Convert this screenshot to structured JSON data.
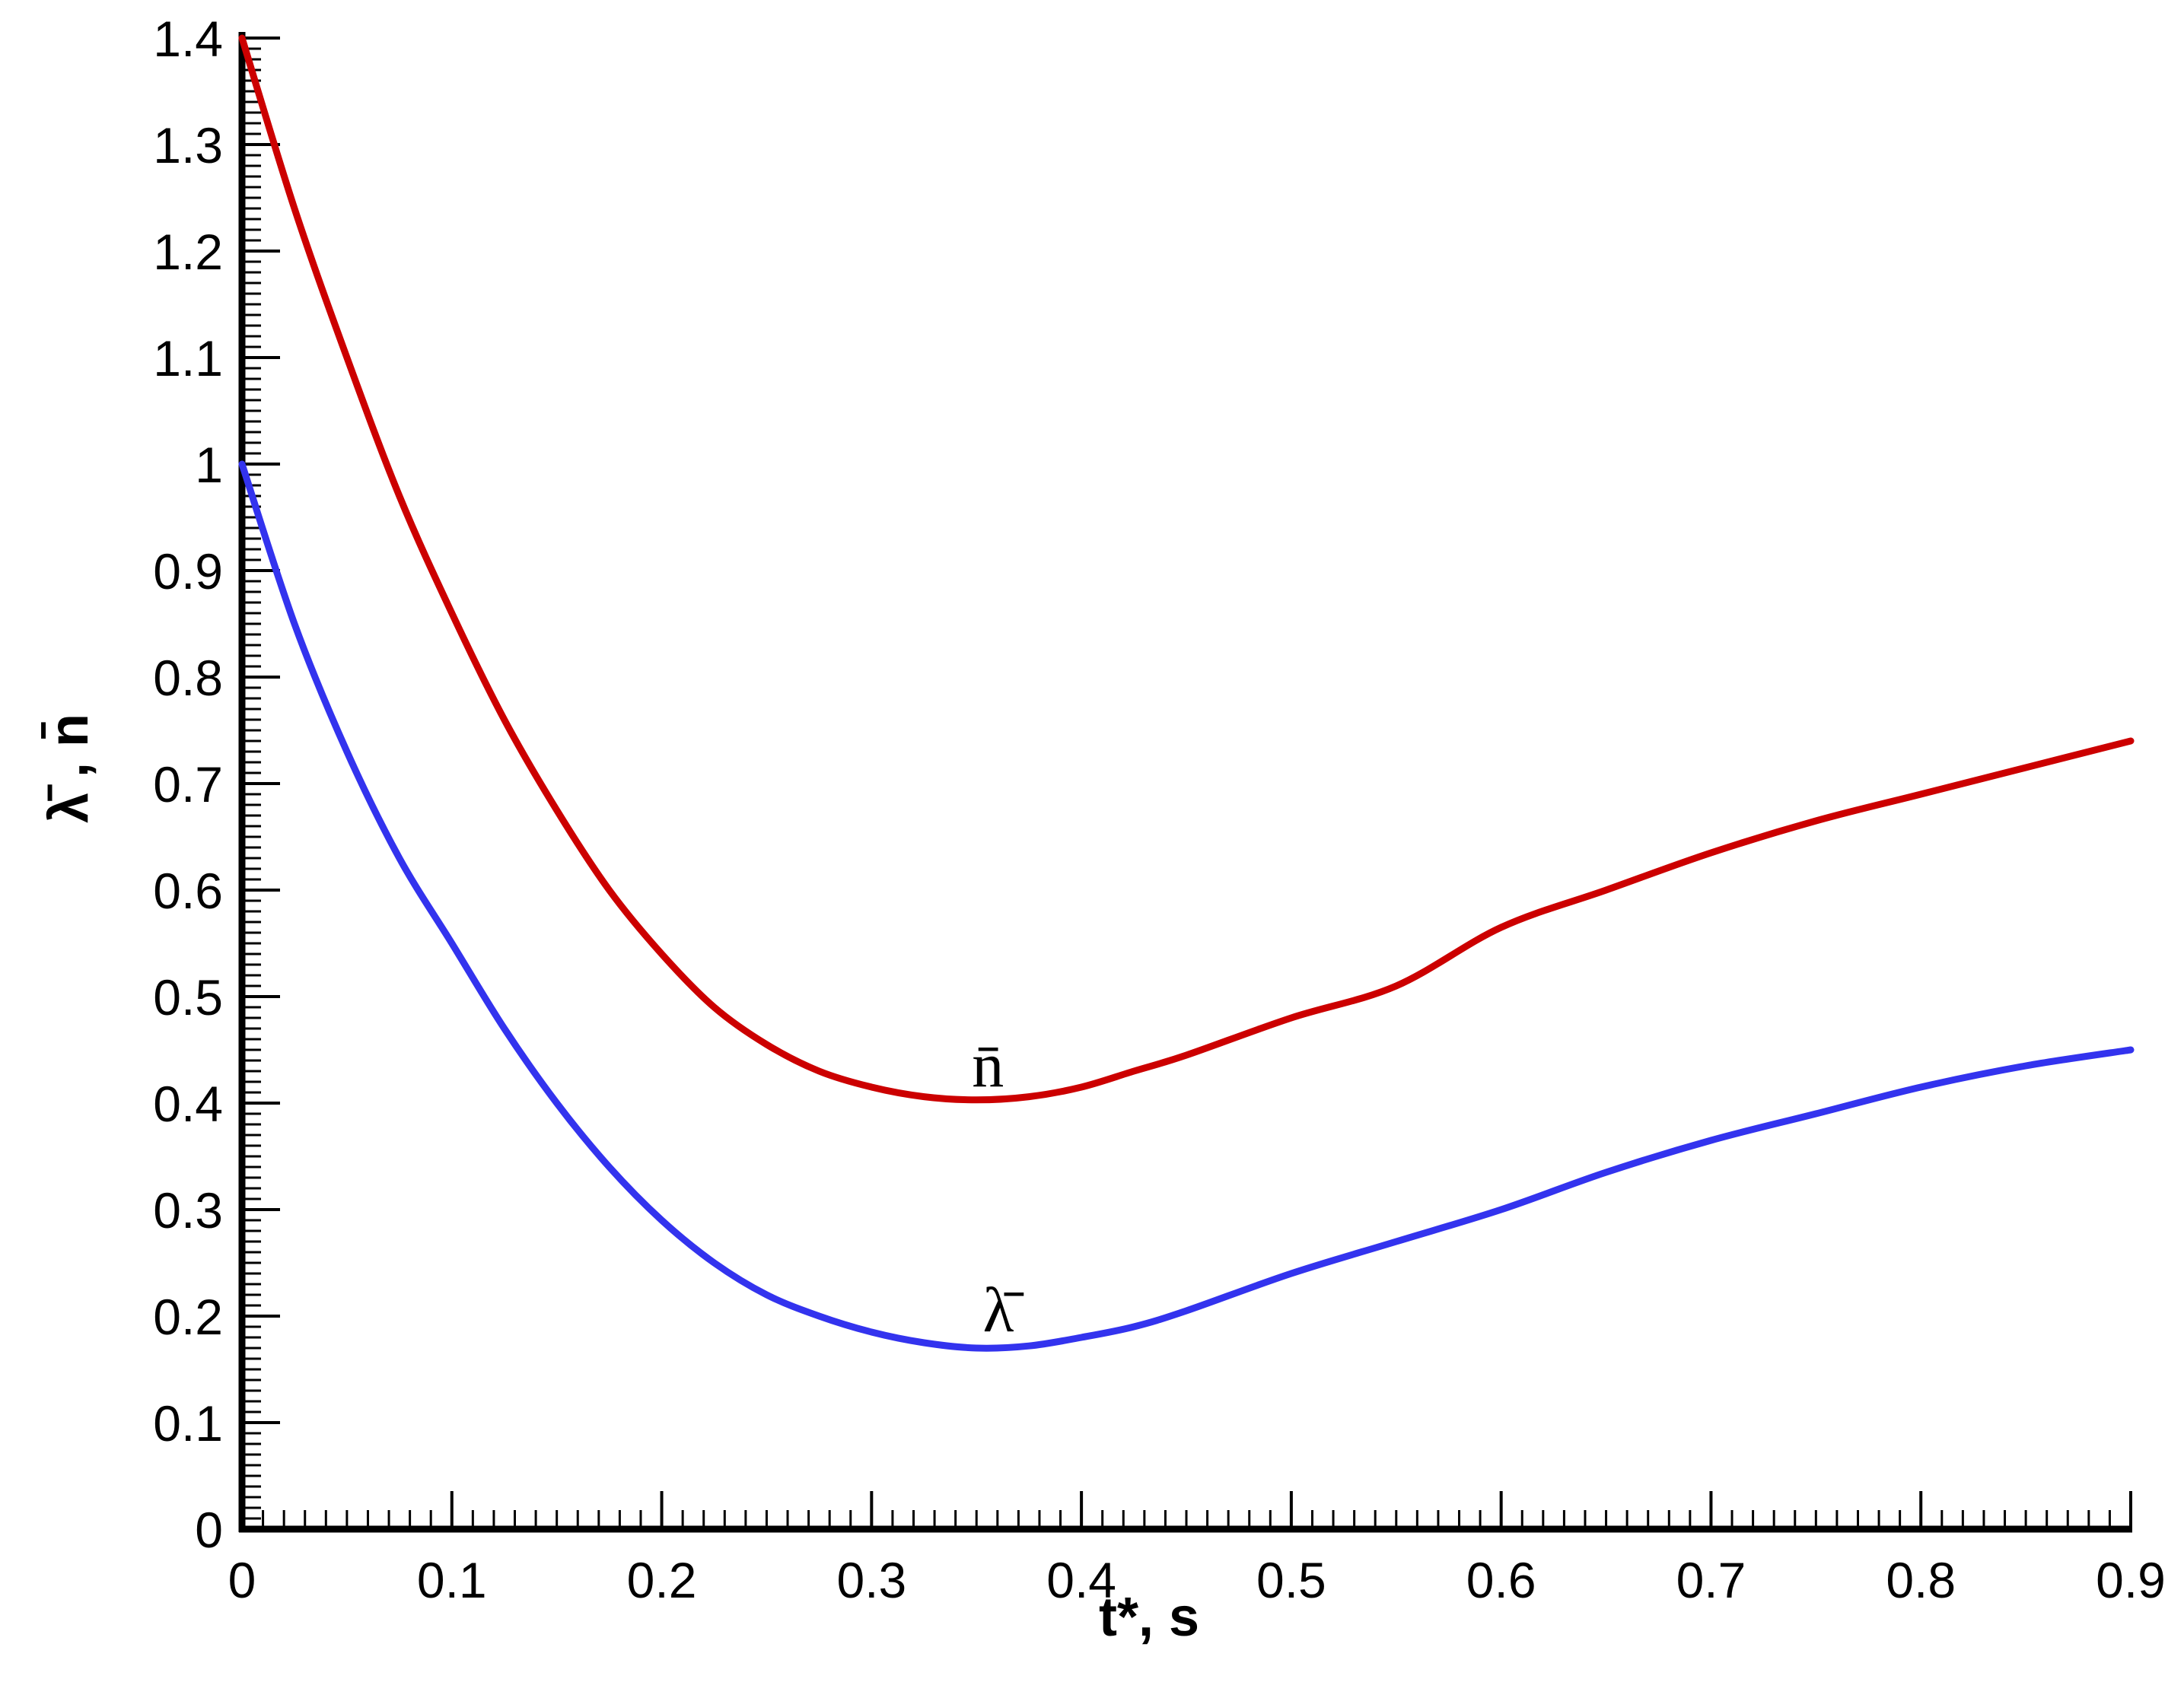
{
  "chart_data": {
    "type": "line",
    "xlabel": "t*, s",
    "ylabel": "λ̄ , n̄",
    "xlim": [
      0,
      0.9
    ],
    "ylim": [
      0,
      1.4
    ],
    "x_ticks": [
      "0",
      "0.1",
      "0.2",
      "0.3",
      "0.4",
      "0.5",
      "0.6",
      "0.7",
      "0.8",
      "0.9"
    ],
    "y_ticks": [
      "0",
      "0.1",
      "0.2",
      "0.3",
      "0.4",
      "0.5",
      "0.6",
      "0.7",
      "0.8",
      "0.9",
      "1",
      "1.1",
      "1.2",
      "1.3",
      "1.4"
    ],
    "grid": false,
    "legend": "none",
    "series": [
      {
        "label": "n̄",
        "color": "#cc0000",
        "points": [
          [
            0,
            1.4
          ],
          [
            0.025,
            1.24
          ],
          [
            0.05,
            1.1
          ],
          [
            0.075,
            0.97
          ],
          [
            0.1,
            0.86
          ],
          [
            0.125,
            0.76
          ],
          [
            0.15,
            0.675
          ],
          [
            0.175,
            0.6
          ],
          [
            0.2,
            0.54
          ],
          [
            0.225,
            0.49
          ],
          [
            0.25,
            0.455
          ],
          [
            0.275,
            0.43
          ],
          [
            0.3,
            0.415
          ],
          [
            0.325,
            0.406
          ],
          [
            0.35,
            0.403
          ],
          [
            0.375,
            0.406
          ],
          [
            0.4,
            0.415
          ],
          [
            0.425,
            0.43
          ],
          [
            0.45,
            0.445
          ],
          [
            0.5,
            0.48
          ],
          [
            0.55,
            0.51
          ],
          [
            0.6,
            0.565
          ],
          [
            0.65,
            0.6
          ],
          [
            0.7,
            0.635
          ],
          [
            0.75,
            0.665
          ],
          [
            0.8,
            0.69
          ],
          [
            0.85,
            0.715
          ],
          [
            0.9,
            0.74
          ]
        ]
      },
      {
        "label": "λ̄",
        "color": "#3333ee",
        "points": [
          [
            0,
            1.0
          ],
          [
            0.025,
            0.85
          ],
          [
            0.05,
            0.73
          ],
          [
            0.075,
            0.63
          ],
          [
            0.1,
            0.55
          ],
          [
            0.125,
            0.47
          ],
          [
            0.15,
            0.4
          ],
          [
            0.175,
            0.34
          ],
          [
            0.2,
            0.29
          ],
          [
            0.225,
            0.25
          ],
          [
            0.25,
            0.22
          ],
          [
            0.275,
            0.2
          ],
          [
            0.3,
            0.185
          ],
          [
            0.325,
            0.175
          ],
          [
            0.35,
            0.17
          ],
          [
            0.375,
            0.172
          ],
          [
            0.4,
            0.18
          ],
          [
            0.425,
            0.19
          ],
          [
            0.45,
            0.205
          ],
          [
            0.5,
            0.24
          ],
          [
            0.55,
            0.27
          ],
          [
            0.6,
            0.3
          ],
          [
            0.65,
            0.335
          ],
          [
            0.7,
            0.365
          ],
          [
            0.75,
            0.39
          ],
          [
            0.8,
            0.415
          ],
          [
            0.85,
            0.435
          ],
          [
            0.9,
            0.45
          ]
        ]
      }
    ],
    "annotations": [
      {
        "text": "n̄",
        "x": 0.35,
        "y": 0.43
      },
      {
        "text": "λ̄",
        "x": 0.355,
        "y": 0.2
      }
    ]
  }
}
